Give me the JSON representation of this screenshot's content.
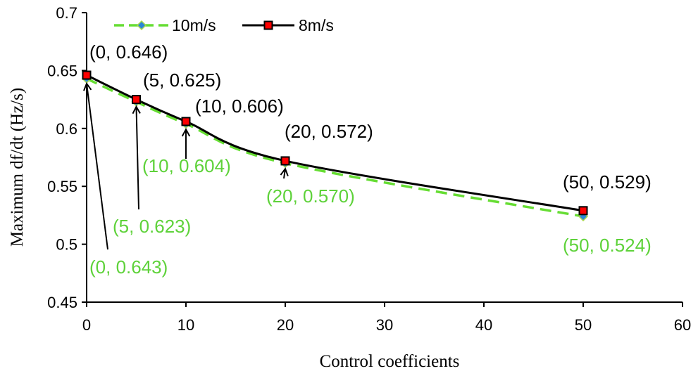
{
  "chart_data": {
    "type": "line",
    "title": "",
    "xlabel": "Control coefficients",
    "ylabel": "Maximum df/dt (Hz/s)",
    "xlim": [
      0,
      60
    ],
    "ylim": [
      0.45,
      0.7
    ],
    "x_ticks": [
      0,
      10,
      20,
      30,
      40,
      50,
      60
    ],
    "y_ticks": [
      0.45,
      0.5,
      0.55,
      0.6,
      0.65,
      0.7
    ],
    "x_tick_labels": [
      "0",
      "10",
      "20",
      "30",
      "40",
      "50",
      "60"
    ],
    "y_tick_labels": [
      "0.45",
      "0.5",
      "0.55",
      "0.6",
      "0.65",
      "0.7"
    ],
    "grid": false,
    "legend_position": "top-left",
    "series": [
      {
        "name": "10m/s",
        "color": "#66dd33",
        "marker_color": "#2c86d6",
        "style": "dashed",
        "x": [
          0,
          5,
          10,
          20,
          50
        ],
        "y": [
          0.643,
          0.623,
          0.604,
          0.57,
          0.524
        ]
      },
      {
        "name": "8m/s",
        "color": "#000000",
        "marker_color": "#ff0000",
        "style": "solid",
        "x": [
          0,
          5,
          10,
          20,
          50
        ],
        "y": [
          0.646,
          0.625,
          0.606,
          0.572,
          0.529
        ]
      }
    ],
    "annotations_8ms": [
      "(0, 0.646)",
      "(5, 0.625)",
      "(10, 0.606)",
      "(20, 0.572)",
      "(50, 0.529)"
    ],
    "annotations_10ms": [
      "(0, 0.643)",
      "(5, 0.623)",
      "(10, 0.604)",
      "(20, 0.570)",
      "(50, 0.524)"
    ]
  }
}
